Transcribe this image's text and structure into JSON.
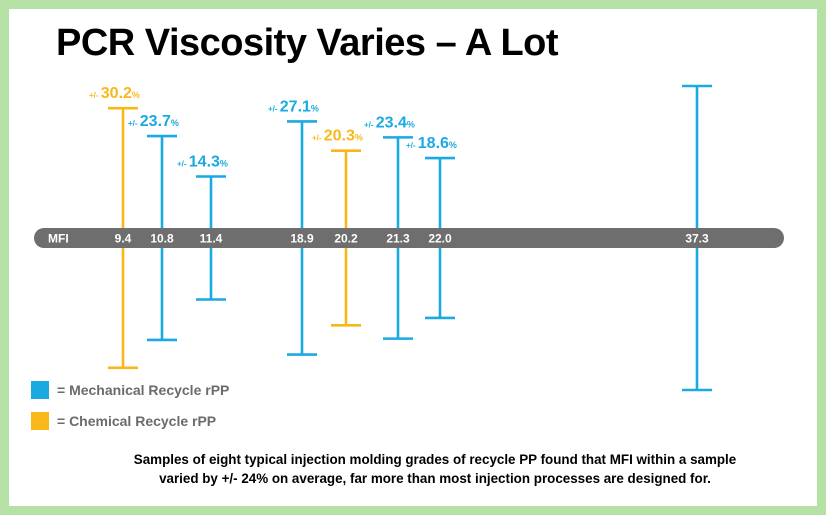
{
  "title": "PCR Viscosity Varies – A Lot",
  "caption_line1": "Samples of eight typical injection molding grades of recycle PP found that MFI within a sample",
  "caption_line2": "varied by +/- 24% on average, far more than most injection processes are designed for.",
  "colors": {
    "mechanical": "#1aa9e1",
    "chemical": "#f9b81a",
    "axis_band": "#6e6e6e",
    "frame": "#b5e2a4"
  },
  "legend": [
    {
      "label": "= Mechanical Recycle rPP",
      "color": "#1aa9e1"
    },
    {
      "label": "= Chemical Recycle rPP",
      "color": "#f9b81a"
    }
  ],
  "chart_data": {
    "type": "error-bar",
    "axis_label": "MFI",
    "axis_max": 40,
    "prefix": "+/-",
    "unit": "%",
    "series": [
      {
        "name": "Mechanical Recycle rPP",
        "color": "#1aa9e1"
      },
      {
        "name": "Chemical Recycle rPP",
        "color": "#f9b81a"
      }
    ],
    "points": [
      {
        "mfi": "9.4",
        "variation": "30.2",
        "variation_pct": 30.2,
        "series": "Chemical Recycle rPP"
      },
      {
        "mfi": "10.8",
        "variation": "23.7",
        "variation_pct": 23.7,
        "series": "Mechanical Recycle rPP"
      },
      {
        "mfi": "11.4",
        "variation": "14.3",
        "variation_pct": 14.3,
        "series": "Mechanical Recycle rPP"
      },
      {
        "mfi": "18.9",
        "variation": "27.1",
        "variation_pct": 27.1,
        "series": "Mechanical Recycle rPP"
      },
      {
        "mfi": "20.2",
        "variation": "20.3",
        "variation_pct": 20.3,
        "series": "Chemical Recycle rPP"
      },
      {
        "mfi": "21.3",
        "variation": "23.4",
        "variation_pct": 23.4,
        "series": "Mechanical Recycle rPP"
      },
      {
        "mfi": "22.0",
        "variation": "18.6",
        "variation_pct": 18.6,
        "series": "Mechanical Recycle rPP"
      },
      {
        "mfi": "37.3",
        "variation": "",
        "variation_pct": null,
        "series": "Mechanical Recycle rPP"
      }
    ]
  }
}
